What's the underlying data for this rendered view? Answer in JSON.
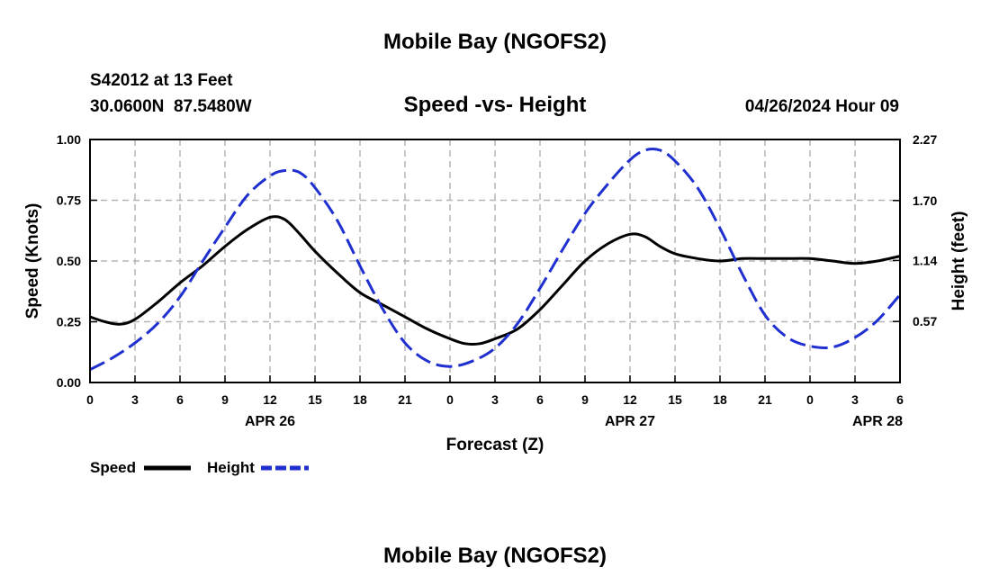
{
  "header": {
    "title": "Mobile Bay (NGOFS2)",
    "station": "S42012 at 13 Feet",
    "coords": "30.0600N  87.5480W",
    "run": "04/26/2024 Hour 09"
  },
  "footer": {
    "title": "Mobile Bay (NGOFS2)"
  },
  "chart_data": {
    "type": "line",
    "title": "Speed -vs- Height",
    "xlabel": "Forecast (Z)",
    "ylabel": "Speed (Knots)",
    "y2label": "Height (feet)",
    "xlim": [
      0,
      54
    ],
    "ylim": [
      0,
      1.0
    ],
    "y2lim": [
      0,
      2.27
    ],
    "x_ticks": [
      0,
      3,
      6,
      9,
      12,
      15,
      18,
      21,
      24,
      27,
      30,
      33,
      36,
      39,
      42,
      45,
      48,
      51,
      54
    ],
    "x_tick_labels": [
      "0",
      "3",
      "6",
      "9",
      "12",
      "15",
      "18",
      "21",
      "0",
      "3",
      "6",
      "9",
      "12",
      "15",
      "18",
      "21",
      "0",
      "3",
      "6"
    ],
    "y_ticks": [
      0,
      0.25,
      0.5,
      0.75,
      1.0
    ],
    "y_tick_labels": [
      "0.00",
      "0.25",
      "0.50",
      "0.75",
      "1.00"
    ],
    "y2_ticks": [
      0.57,
      1.14,
      1.7,
      2.27
    ],
    "y2_tick_labels": [
      "0.57",
      "1.14",
      "1.70",
      "2.27"
    ],
    "date_labels": [
      {
        "x": 12,
        "label": "APR 26"
      },
      {
        "x": 36,
        "label": "APR 27"
      },
      {
        "x": 52.5,
        "label": "APR 28"
      }
    ],
    "grid": true,
    "legend": [
      "Speed",
      "Height"
    ],
    "series": [
      {
        "name": "Speed",
        "axis": "left",
        "color": "#000000",
        "dash": "solid",
        "x": [
          0,
          1,
          2,
          3,
          4.5,
          6,
          7.5,
          9,
          10.5,
          12,
          13,
          14,
          15,
          16.5,
          18,
          19.5,
          21,
          22.5,
          24,
          25,
          26,
          27,
          28.5,
          30,
          31.5,
          33,
          34.5,
          36,
          37,
          38,
          39,
          40.5,
          42,
          43.5,
          45,
          46.5,
          48,
          49.5,
          51,
          52.5,
          54
        ],
        "y": [
          0.27,
          0.25,
          0.24,
          0.26,
          0.33,
          0.41,
          0.48,
          0.56,
          0.63,
          0.68,
          0.67,
          0.61,
          0.54,
          0.45,
          0.37,
          0.32,
          0.27,
          0.22,
          0.18,
          0.16,
          0.16,
          0.18,
          0.22,
          0.3,
          0.4,
          0.5,
          0.57,
          0.61,
          0.6,
          0.56,
          0.53,
          0.51,
          0.5,
          0.51,
          0.51,
          0.51,
          0.51,
          0.5,
          0.49,
          0.5,
          0.52
        ]
      },
      {
        "name": "Height",
        "axis": "right",
        "color": "#1f2fd0",
        "dash": "dashed",
        "x": [
          0,
          1.5,
          3,
          4.5,
          6,
          7.5,
          9,
          10.5,
          12,
          13,
          14,
          15,
          16.5,
          18,
          19.5,
          21,
          22.5,
          24,
          25.5,
          27,
          28.5,
          30,
          31.5,
          33,
          34.5,
          36,
          37,
          38,
          39,
          40.5,
          42,
          43.5,
          45,
          46.5,
          48,
          49.5,
          51,
          52.5,
          54
        ],
        "y": [
          0.12,
          0.23,
          0.37,
          0.55,
          0.8,
          1.13,
          1.45,
          1.75,
          1.93,
          1.98,
          1.96,
          1.82,
          1.51,
          1.09,
          0.69,
          0.37,
          0.2,
          0.15,
          0.2,
          0.32,
          0.55,
          0.88,
          1.24,
          1.58,
          1.85,
          2.08,
          2.17,
          2.17,
          2.07,
          1.82,
          1.44,
          1.01,
          0.63,
          0.42,
          0.34,
          0.33,
          0.42,
          0.58,
          0.82
        ]
      }
    ]
  }
}
